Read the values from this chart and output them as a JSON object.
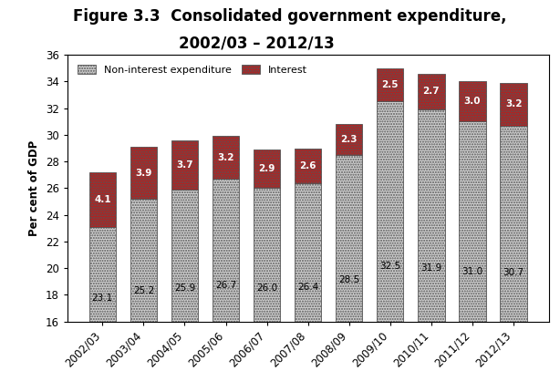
{
  "title_line1": "Figure 3.3  Consolidated government expenditure,",
  "title_line2": "2002/03 – 2012/13",
  "categories": [
    "2002/03",
    "2003/04",
    "2004/05",
    "2005/06",
    "2006/07",
    "2007/08",
    "2008/09",
    "2009/10",
    "2010/11",
    "2011/12",
    "2012/13"
  ],
  "non_interest": [
    23.1,
    25.2,
    25.9,
    26.7,
    26.0,
    26.4,
    28.5,
    32.5,
    31.9,
    31.0,
    30.7
  ],
  "interest": [
    4.1,
    3.9,
    3.7,
    3.2,
    2.9,
    2.6,
    2.3,
    2.5,
    2.7,
    3.0,
    3.2
  ],
  "bar_color_non_interest": "#d0d0d0",
  "bar_color_interest": "#b22222",
  "ylabel": "Per cent of GDP",
  "ylim": [
    16,
    36
  ],
  "yticks": [
    16,
    18,
    20,
    22,
    24,
    26,
    28,
    30,
    32,
    34,
    36
  ],
  "legend_non_interest": "Non-interest expenditure",
  "legend_interest": "Interest",
  "title_fontsize": 12,
  "axis_fontsize": 8.5,
  "label_fontsize": 7.5,
  "background_color": "#ffffff",
  "bar_width": 0.65
}
